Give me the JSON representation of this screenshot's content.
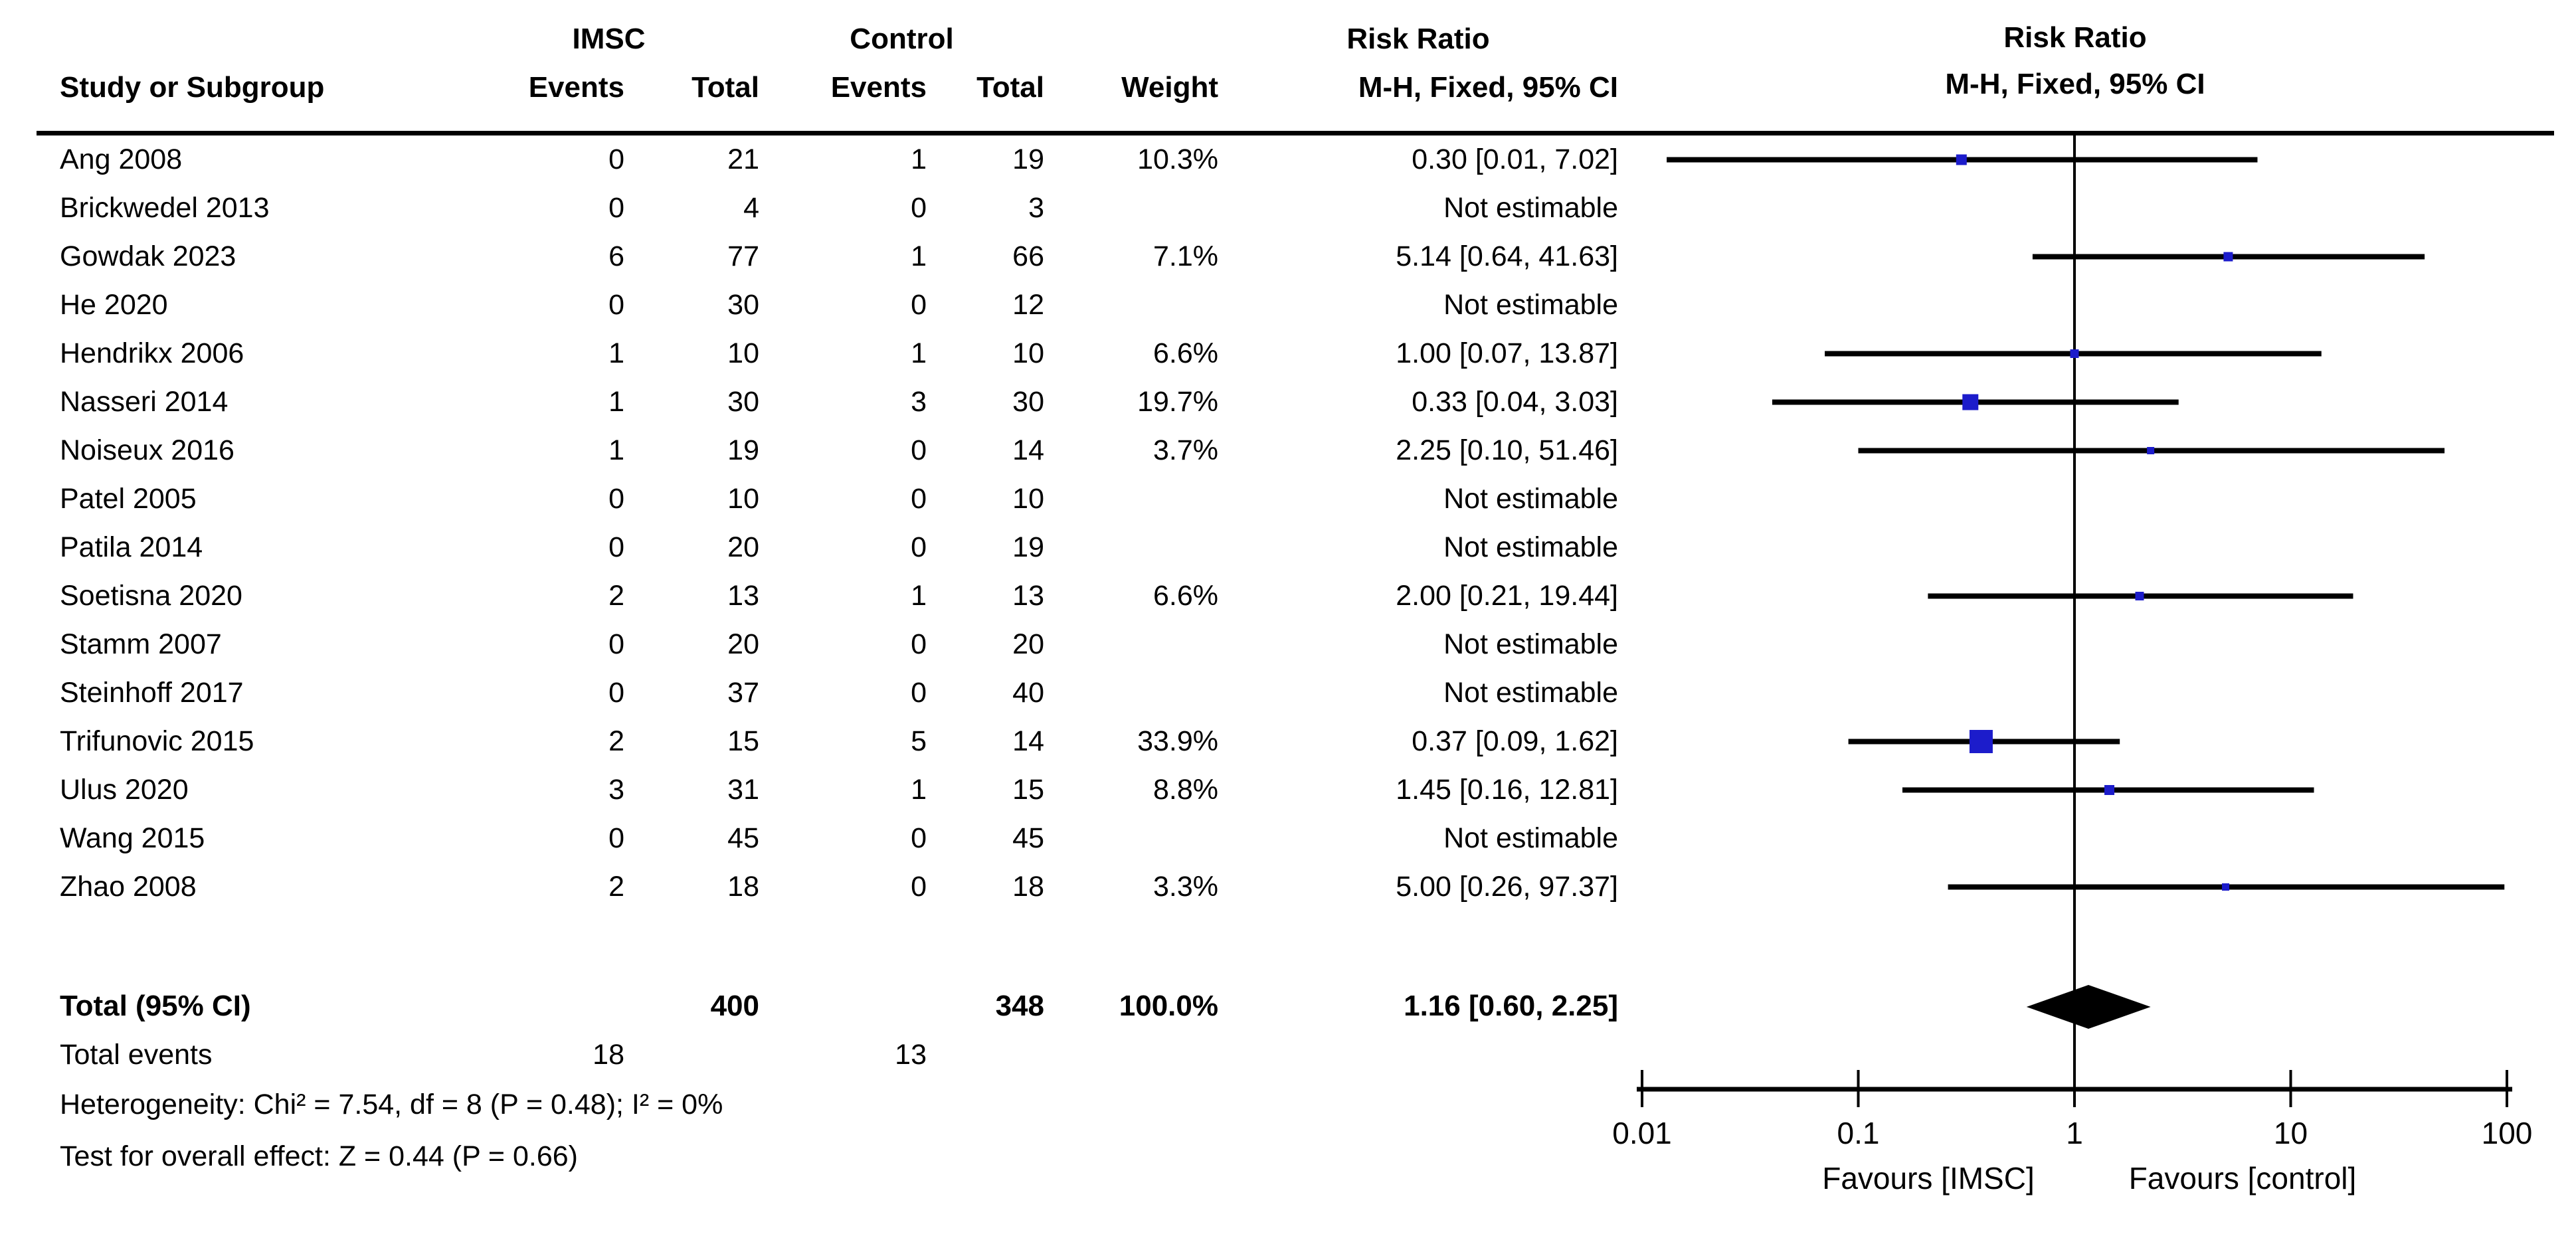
{
  "header": {
    "group_imsc": "IMSC",
    "group_control": "Control",
    "group_risk_ratio": "Risk Ratio",
    "col_study": "Study or Subgroup",
    "col_events": "Events",
    "col_total": "Total",
    "col_events2": "Events",
    "col_total2": "Total",
    "col_weight": "Weight",
    "col_mh_ci": "M-H, Fixed, 95% CI",
    "plot_group_risk_ratio": "Risk Ratio",
    "plot_col_mh_ci": "M-H, Fixed, 95% CI"
  },
  "totals": {
    "label": "Total (95% CI)",
    "imsc_total": "400",
    "control_total": "348",
    "weight": "100.0%",
    "rr": "1.16 [0.60, 2.25]"
  },
  "total_events": {
    "label": "Total events",
    "imsc": "18",
    "control": "13"
  },
  "footnotes": {
    "heterogeneity": "Heterogeneity: Chi² = 7.54, df = 8 (P = 0.48); I² = 0%",
    "overall_effect": "Test for overall effect: Z = 0.44 (P = 0.66)"
  },
  "chart_data": {
    "type": "forest",
    "effect_measure": "Risk Ratio",
    "method": "M-H, Fixed, 95% CI",
    "x_scale": "log",
    "x_ticks": [
      0.01,
      0.1,
      1,
      10,
      100
    ],
    "x_tick_labels": [
      "0.01",
      "0.1",
      "1",
      "10",
      "100"
    ],
    "null_value": 1,
    "favours_left": "Favours [IMSC]",
    "favours_right": "Favours [control]",
    "marker_color": "#1c1ccb",
    "diamond_color": "#000000",
    "studies": [
      {
        "name": "Ang 2008",
        "imsc_events": "0",
        "imsc_total": "21",
        "control_events": "1",
        "control_total": "19",
        "weight_label": "10.3%",
        "rr_label": "0.30 [0.01, 7.02]",
        "plot": {
          "rr": 0.3,
          "lo": 0.013,
          "hi": 7.02,
          "weight": 10.3
        }
      },
      {
        "name": "Brickwedel 2013",
        "imsc_events": "0",
        "imsc_total": "4",
        "control_events": "0",
        "control_total": "3",
        "weight_label": "",
        "rr_label": "Not estimable",
        "plot": null
      },
      {
        "name": "Gowdak 2023",
        "imsc_events": "6",
        "imsc_total": "77",
        "control_events": "1",
        "control_total": "66",
        "weight_label": "7.1%",
        "rr_label": "5.14 [0.64, 41.63]",
        "plot": {
          "rr": 5.14,
          "lo": 0.64,
          "hi": 41.63,
          "weight": 7.1
        }
      },
      {
        "name": "He 2020",
        "imsc_events": "0",
        "imsc_total": "30",
        "control_events": "0",
        "control_total": "12",
        "weight_label": "",
        "rr_label": "Not estimable",
        "plot": null
      },
      {
        "name": "Hendrikx 2006",
        "imsc_events": "1",
        "imsc_total": "10",
        "control_events": "1",
        "control_total": "10",
        "weight_label": "6.6%",
        "rr_label": "1.00 [0.07, 13.87]",
        "plot": {
          "rr": 1.0,
          "lo": 0.07,
          "hi": 13.87,
          "weight": 6.6
        }
      },
      {
        "name": "Nasseri 2014",
        "imsc_events": "1",
        "imsc_total": "30",
        "control_events": "3",
        "control_total": "30",
        "weight_label": "19.7%",
        "rr_label": "0.33 [0.04, 3.03]",
        "plot": {
          "rr": 0.33,
          "lo": 0.04,
          "hi": 3.03,
          "weight": 19.7
        }
      },
      {
        "name": "Noiseux 2016",
        "imsc_events": "1",
        "imsc_total": "19",
        "control_events": "0",
        "control_total": "14",
        "weight_label": "3.7%",
        "rr_label": "2.25 [0.10, 51.46]",
        "plot": {
          "rr": 2.25,
          "lo": 0.1,
          "hi": 51.46,
          "weight": 3.7
        }
      },
      {
        "name": "Patel 2005",
        "imsc_events": "0",
        "imsc_total": "10",
        "control_events": "0",
        "control_total": "10",
        "weight_label": "",
        "rr_label": "Not estimable",
        "plot": null
      },
      {
        "name": "Patila 2014",
        "imsc_events": "0",
        "imsc_total": "20",
        "control_events": "0",
        "control_total": "19",
        "weight_label": "",
        "rr_label": "Not estimable",
        "plot": null
      },
      {
        "name": "Soetisna 2020",
        "imsc_events": "2",
        "imsc_total": "13",
        "control_events": "1",
        "control_total": "13",
        "weight_label": "6.6%",
        "rr_label": "2.00 [0.21, 19.44]",
        "plot": {
          "rr": 2.0,
          "lo": 0.21,
          "hi": 19.44,
          "weight": 6.6
        }
      },
      {
        "name": "Stamm 2007",
        "imsc_events": "0",
        "imsc_total": "20",
        "control_events": "0",
        "control_total": "20",
        "weight_label": "",
        "rr_label": "Not estimable",
        "plot": null
      },
      {
        "name": "Steinhoff 2017",
        "imsc_events": "0",
        "imsc_total": "37",
        "control_events": "0",
        "control_total": "40",
        "weight_label": "",
        "rr_label": "Not estimable",
        "plot": null
      },
      {
        "name": "Trifunovic 2015",
        "imsc_events": "2",
        "imsc_total": "15",
        "control_events": "5",
        "control_total": "14",
        "weight_label": "33.9%",
        "rr_label": "0.37 [0.09, 1.62]",
        "plot": {
          "rr": 0.37,
          "lo": 0.09,
          "hi": 1.62,
          "weight": 33.9
        }
      },
      {
        "name": "Ulus 2020",
        "imsc_events": "3",
        "imsc_total": "31",
        "control_events": "1",
        "control_total": "15",
        "weight_label": "8.8%",
        "rr_label": "1.45 [0.16, 12.81]",
        "plot": {
          "rr": 1.45,
          "lo": 0.16,
          "hi": 12.81,
          "weight": 8.8
        }
      },
      {
        "name": "Wang 2015",
        "imsc_events": "0",
        "imsc_total": "45",
        "control_events": "0",
        "control_total": "45",
        "weight_label": "",
        "rr_label": "Not estimable",
        "plot": null
      },
      {
        "name": "Zhao 2008",
        "imsc_events": "2",
        "imsc_total": "18",
        "control_events": "0",
        "control_total": "18",
        "weight_label": "3.3%",
        "rr_label": "5.00 [0.26, 97.37]",
        "plot": {
          "rr": 5.0,
          "lo": 0.26,
          "hi": 97.37,
          "weight": 3.3
        }
      }
    ],
    "total": {
      "rr": 1.16,
      "lo": 0.6,
      "hi": 2.25,
      "imsc_total": 400,
      "control_total": 348,
      "weight": 100.0
    }
  }
}
